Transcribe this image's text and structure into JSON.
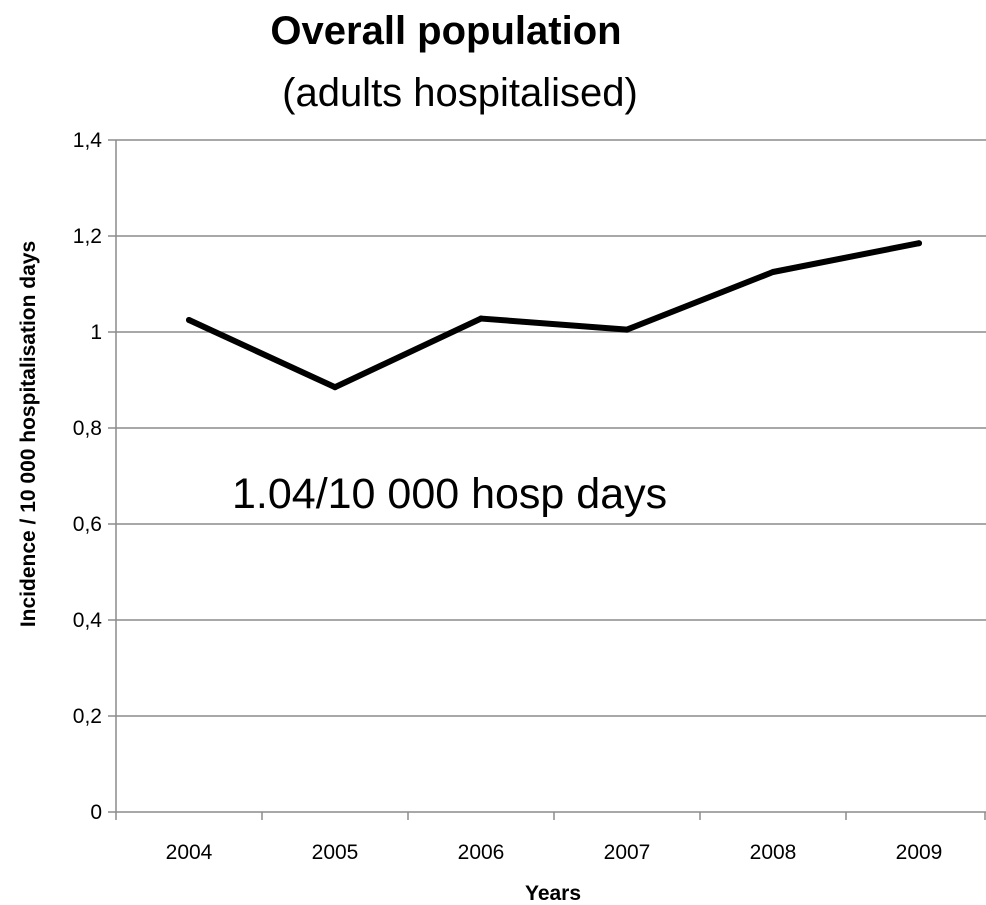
{
  "chart_data": {
    "type": "line",
    "title": "Overall population",
    "subtitle": "(adults hospitalised)",
    "xlabel": "Years",
    "ylabel": "Incidence  / 10 000 hospitalisation days",
    "categories": [
      "2004",
      "2005",
      "2006",
      "2007",
      "2008",
      "2009"
    ],
    "series": [
      {
        "values": [
          1.025,
          0.885,
          1.028,
          1.005,
          1.125,
          1.185
        ]
      }
    ],
    "ylim": [
      0,
      1.4
    ],
    "yticks": [
      0,
      0.2,
      0.4,
      0.6,
      0.8,
      1,
      1.2,
      1.4
    ],
    "ytick_labels": [
      "0",
      "0,2",
      "0,4",
      "0,6",
      "0,8",
      "1",
      "1,2",
      "1,4"
    ],
    "grid": true,
    "legend": "none",
    "annotation": "1.04/10 000 hosp days",
    "line_color": "#000000"
  }
}
